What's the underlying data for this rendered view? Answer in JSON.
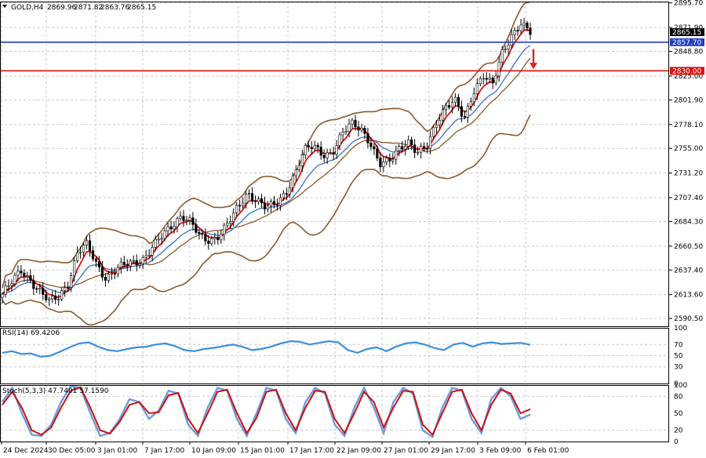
{
  "header": {
    "symbol": "GOLD,H4",
    "open": "2869.96",
    "high": "2871.82",
    "low": "2863.76",
    "close": "2865.15"
  },
  "colors": {
    "bull_line": "#1f3fbf",
    "bear_line": "#e01010",
    "bollinger": "#8b5a2b",
    "ema_fast": "#e01010",
    "ema_slow": "#4a78c8",
    "rsi": "#3a8fe0",
    "stoch_main": "#6f9bdc",
    "stoch_signal": "#cc1111",
    "arrow": "#e02020",
    "grid": "#c8c8c8",
    "candle": "#000000"
  },
  "chart_data": [
    {
      "type": "candlestick",
      "name": "GOLD,H4",
      "ylim": [
        2583,
        2897
      ],
      "y_ticks": [
        "2895.70",
        "2871.90",
        "2848.80",
        "2825.00",
        "2801.90",
        "2778.10",
        "2755.00",
        "2731.20",
        "2707.40",
        "2684.30",
        "2660.50",
        "2637.40",
        "2613.60",
        "2590.50"
      ],
      "x_ticks": [
        "24 Dec 2024",
        "30 Dec 05:00",
        "3 Jan 01:00",
        "7 Jan 17:00",
        "10 Jan 09:00",
        "15 Jan 01:00",
        "17 Jan 17:00",
        "22 Jan 09:00",
        "27 Jan 01:00",
        "29 Jan 17:00",
        "3 Feb 09:00",
        "6 Feb 01:00"
      ],
      "price_path": [
        2614,
        2625,
        2637,
        2628,
        2616,
        2606,
        2612,
        2626,
        2655,
        2661,
        2643,
        2630,
        2637,
        2642,
        2645,
        2649,
        2660,
        2670,
        2681,
        2691,
        2683,
        2668,
        2666,
        2672,
        2683,
        2697,
        2712,
        2706,
        2697,
        2700,
        2712,
        2731,
        2752,
        2757,
        2750,
        2751,
        2767,
        2779,
        2776,
        2761,
        2738,
        2742,
        2756,
        2762,
        2749,
        2756,
        2781,
        2795,
        2800,
        2783,
        2812,
        2826,
        2815,
        2847,
        2865,
        2876,
        2865
      ],
      "price_lines": [
        {
          "label": "2865.15",
          "value": 2865.15
        },
        {
          "label": "2857.70",
          "value": 2857.7
        },
        {
          "label": "2830.00",
          "value": 2830.0
        }
      ]
    },
    {
      "type": "line",
      "name": "RSI(14) 69.4206",
      "ylim": [
        0,
        100
      ],
      "y_ticks": [
        "100",
        "70",
        "50",
        "30",
        "0"
      ],
      "values": [
        55,
        58,
        53,
        54,
        48,
        50,
        57,
        65,
        72,
        74,
        66,
        60,
        58,
        62,
        65,
        66,
        70,
        72,
        67,
        60,
        58,
        62,
        64,
        67,
        70,
        66,
        60,
        62,
        66,
        72,
        76,
        75,
        70,
        73,
        76,
        74,
        60,
        55,
        62,
        65,
        58,
        66,
        72,
        74,
        70,
        64,
        60,
        70,
        73,
        66,
        72,
        74,
        71,
        72,
        73,
        69.4
      ]
    },
    {
      "type": "line",
      "name": "Stoch(5,3,3) 47.7401 57.1590",
      "ylim": [
        0,
        100
      ],
      "y_ticks": [
        "100",
        "80",
        "50",
        "20",
        "0"
      ],
      "main": [
        70,
        95,
        50,
        12,
        10,
        30,
        70,
        98,
        95,
        50,
        10,
        15,
        40,
        75,
        70,
        40,
        55,
        90,
        85,
        30,
        10,
        60,
        95,
        90,
        40,
        10,
        50,
        95,
        90,
        40,
        15,
        70,
        95,
        85,
        30,
        10,
        60,
        95,
        60,
        15,
        70,
        95,
        85,
        20,
        8,
        60,
        95,
        90,
        40,
        15,
        75,
        95,
        80,
        40,
        47.74
      ],
      "signal": [
        65,
        88,
        60,
        20,
        12,
        25,
        60,
        90,
        96,
        60,
        20,
        14,
        35,
        65,
        70,
        50,
        52,
        82,
        86,
        40,
        15,
        50,
        88,
        92,
        50,
        15,
        42,
        88,
        92,
        50,
        20,
        60,
        90,
        88,
        40,
        15,
        50,
        88,
        70,
        25,
        60,
        90,
        88,
        30,
        12,
        50,
        88,
        92,
        50,
        20,
        65,
        92,
        85,
        50,
        57.16
      ]
    }
  ]
}
